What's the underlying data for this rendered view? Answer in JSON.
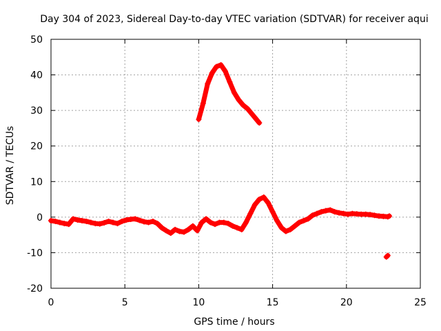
{
  "chart_data": {
    "type": "scatter",
    "title": "Day 304 of 2023, Sidereal Day-to-day VTEC variation (SDTVAR) for receiver aqui",
    "xlabel": "GPS time / hours",
    "ylabel": "SDTVAR / TECUs",
    "xlim": [
      0,
      25
    ],
    "ylim": [
      -20,
      50
    ],
    "xticks": [
      "0",
      "5",
      "10",
      "15",
      "20",
      "25"
    ],
    "yticks": [
      "-20",
      "-10",
      "0",
      "10",
      "20",
      "30",
      "40",
      "50"
    ],
    "grid": true,
    "series_color": "#ff0000",
    "series": [
      {
        "name": "SDTVAR",
        "x": [
          10.0,
          10.3,
          10.6,
          10.9,
          11.2,
          11.5,
          11.8,
          12.1,
          12.4,
          12.7,
          13.0,
          13.3,
          13.6,
          13.9,
          14.1
        ],
        "y": [
          27.5,
          32.0,
          37.5,
          40.5,
          42.3,
          42.8,
          41.0,
          38.0,
          35.0,
          33.0,
          31.5,
          30.5,
          29.0,
          27.5,
          26.5
        ]
      },
      {
        "name": "SDTVAR",
        "x": [
          0.0,
          0.3,
          0.6,
          0.9,
          1.2,
          1.5,
          1.8,
          2.1,
          2.4,
          2.7,
          3.0,
          3.3,
          3.6,
          3.9,
          4.2,
          4.5,
          4.8,
          5.1,
          5.4,
          5.7,
          6.0,
          6.3,
          6.6,
          6.9,
          7.2,
          7.5,
          7.8,
          8.1,
          8.4,
          8.7,
          9.0,
          9.3,
          9.6,
          9.9,
          10.2,
          10.5,
          10.8,
          11.1,
          11.4,
          11.7,
          12.0,
          12.3,
          12.6,
          12.9,
          13.2,
          13.5,
          13.8,
          14.1,
          14.4,
          14.7,
          15.0,
          15.3,
          15.6,
          15.9,
          16.2,
          16.5,
          16.8,
          17.1,
          17.4,
          17.7,
          18.0,
          18.3,
          18.6,
          18.9,
          19.2,
          19.5,
          19.8,
          20.1,
          20.4,
          20.7,
          21.0,
          21.3,
          21.6,
          21.9,
          22.2,
          22.5,
          22.8,
          22.9
        ],
        "y": [
          -1.0,
          -1.2,
          -1.5,
          -1.8,
          -2.0,
          -0.5,
          -0.8,
          -1.0,
          -1.2,
          -1.5,
          -1.8,
          -1.9,
          -1.6,
          -1.2,
          -1.5,
          -1.8,
          -1.2,
          -0.8,
          -0.6,
          -0.5,
          -0.9,
          -1.3,
          -1.5,
          -1.2,
          -1.8,
          -3.0,
          -3.8,
          -4.5,
          -3.5,
          -4.0,
          -4.2,
          -3.5,
          -2.5,
          -3.8,
          -1.5,
          -0.5,
          -1.5,
          -2.0,
          -1.5,
          -1.5,
          -1.8,
          -2.5,
          -3.0,
          -3.5,
          -1.5,
          1.0,
          3.5,
          5.0,
          5.6,
          4.0,
          1.5,
          -1.0,
          -3.0,
          -4.0,
          -3.5,
          -2.5,
          -1.5,
          -1.0,
          -0.5,
          0.5,
          1.0,
          1.5,
          1.8,
          2.0,
          1.5,
          1.2,
          1.0,
          0.8,
          1.0,
          0.9,
          0.8,
          0.8,
          0.7,
          0.5,
          0.3,
          0.2,
          0.1,
          0.3
        ]
      },
      {
        "name": "SDTVAR",
        "x": [
          22.7,
          22.8
        ],
        "y": [
          -11.2,
          -10.8
        ]
      }
    ]
  }
}
